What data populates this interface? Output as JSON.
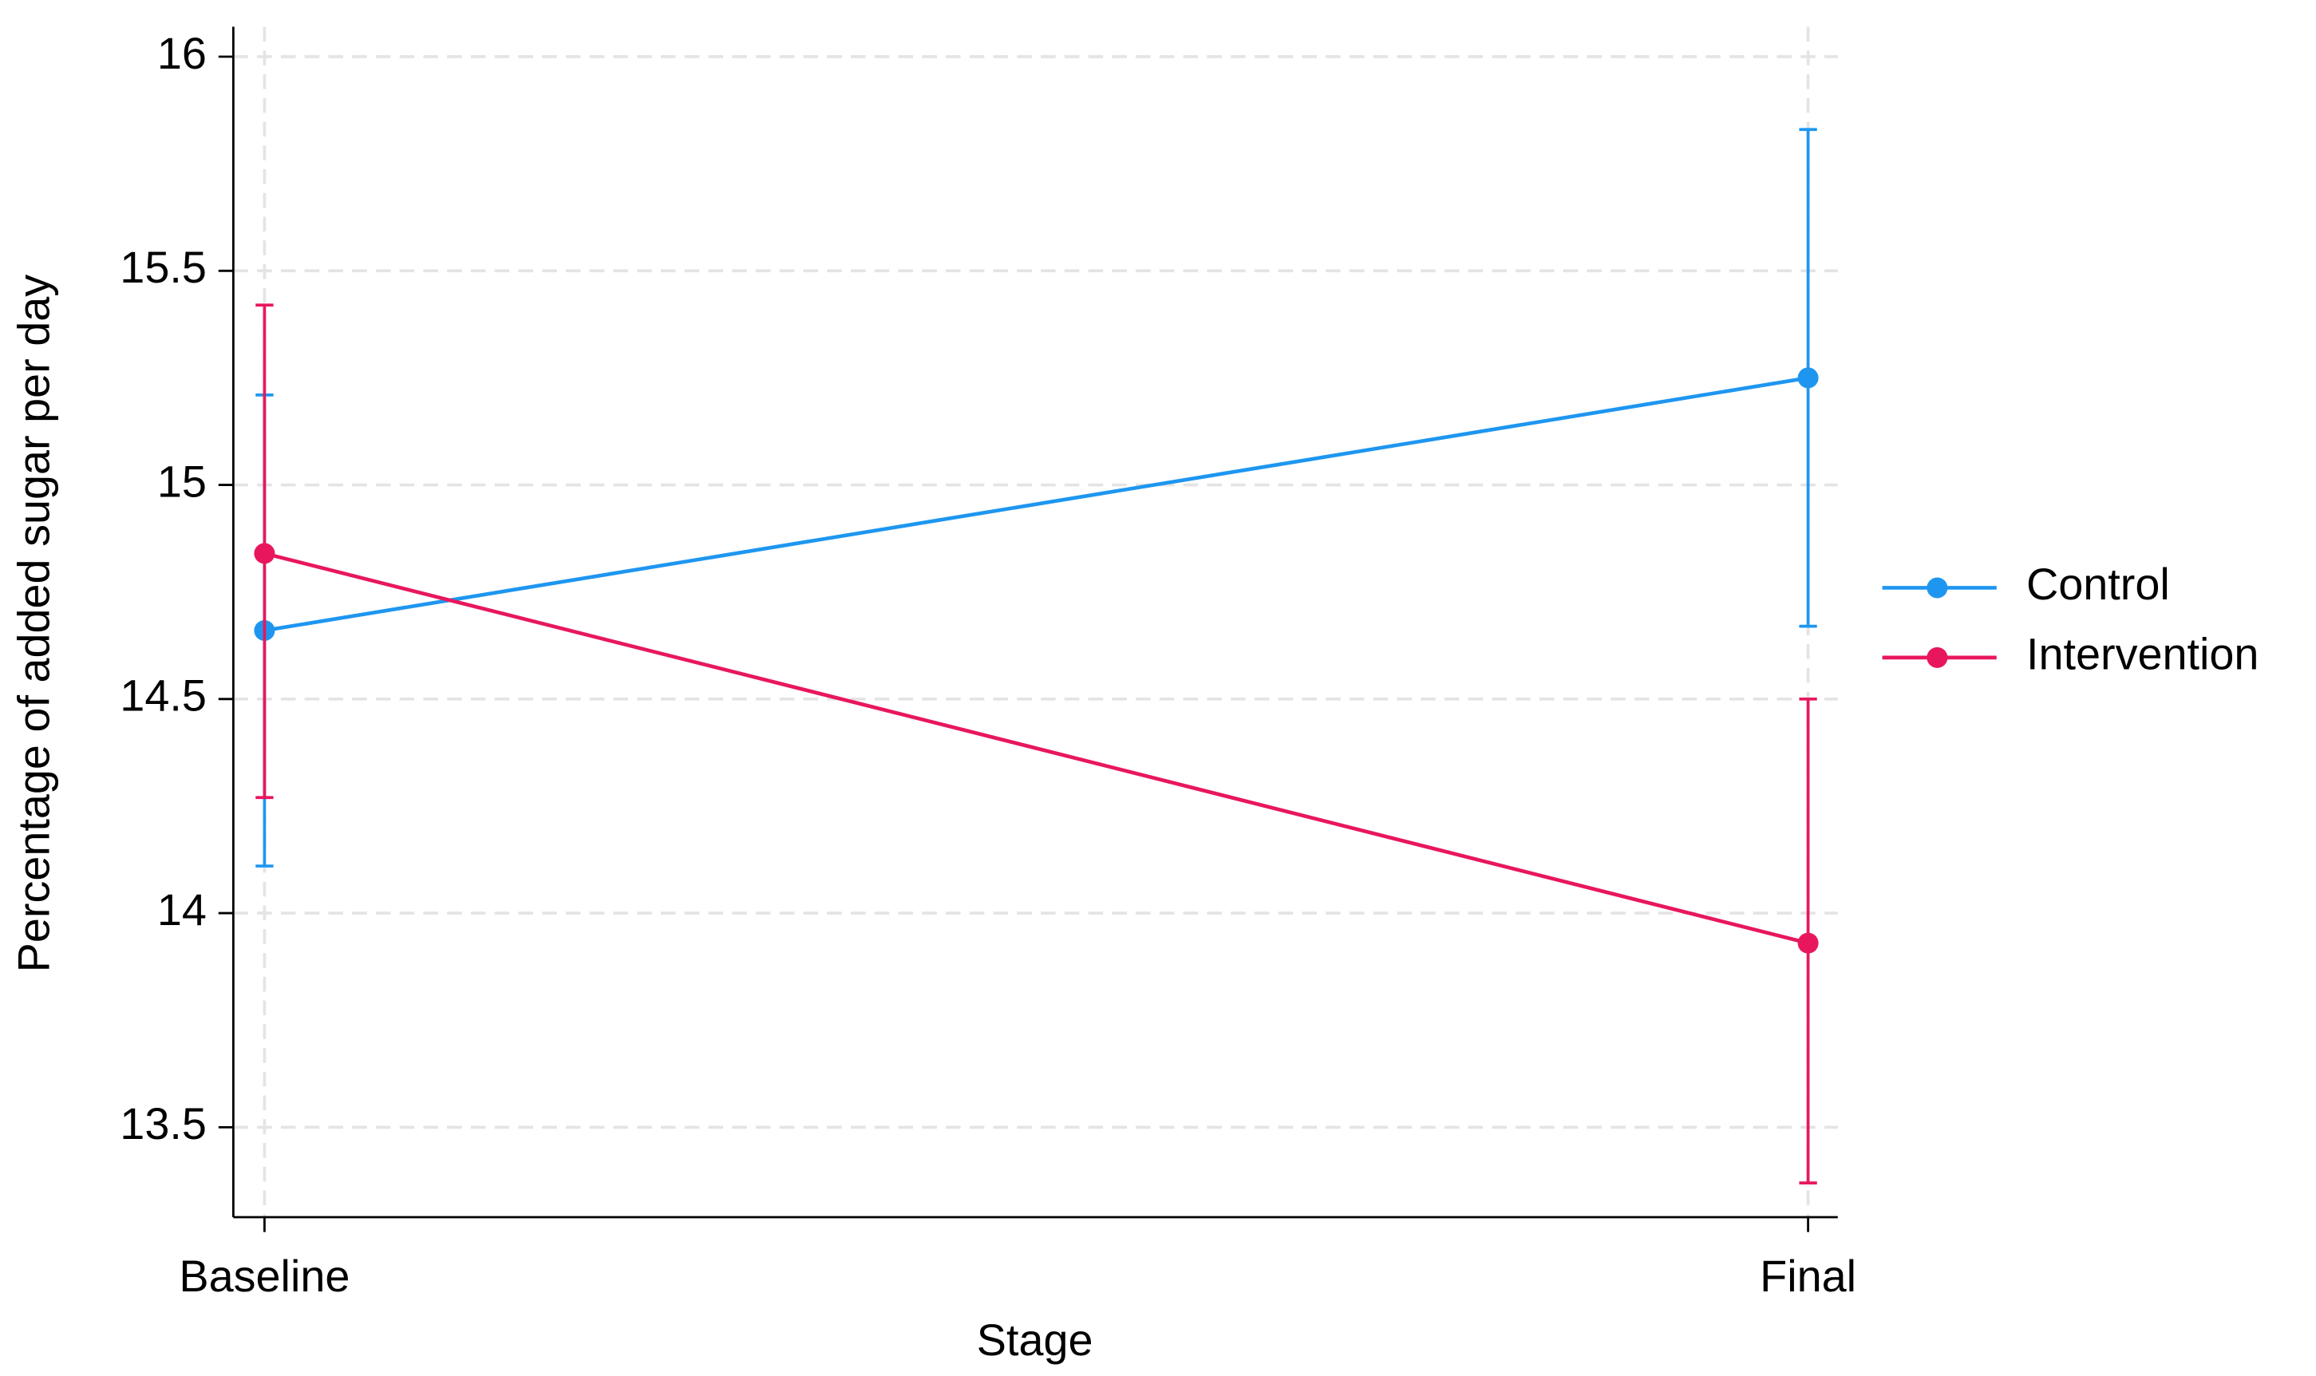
{
  "chart_data": {
    "type": "line",
    "x_label": "Stage",
    "y_label": "Percentage of added sugar per day",
    "categories": [
      "Baseline",
      "Final"
    ],
    "series": [
      {
        "name": "Control",
        "color": "#1e96f0",
        "values": [
          14.66,
          15.25
        ],
        "lower": [
          14.11,
          14.67
        ],
        "upper": [
          15.21,
          15.83
        ]
      },
      {
        "name": "Intervention",
        "color": "#e8175d",
        "values": [
          14.84,
          13.93
        ],
        "lower": [
          14.27,
          13.37
        ],
        "upper": [
          15.42,
          14.5
        ]
      }
    ],
    "ylim": [
      13.29,
      16.07
    ],
    "yticks": [
      13.5,
      14,
      14.5,
      15,
      15.5,
      16
    ],
    "grid": true,
    "legend": "right"
  }
}
